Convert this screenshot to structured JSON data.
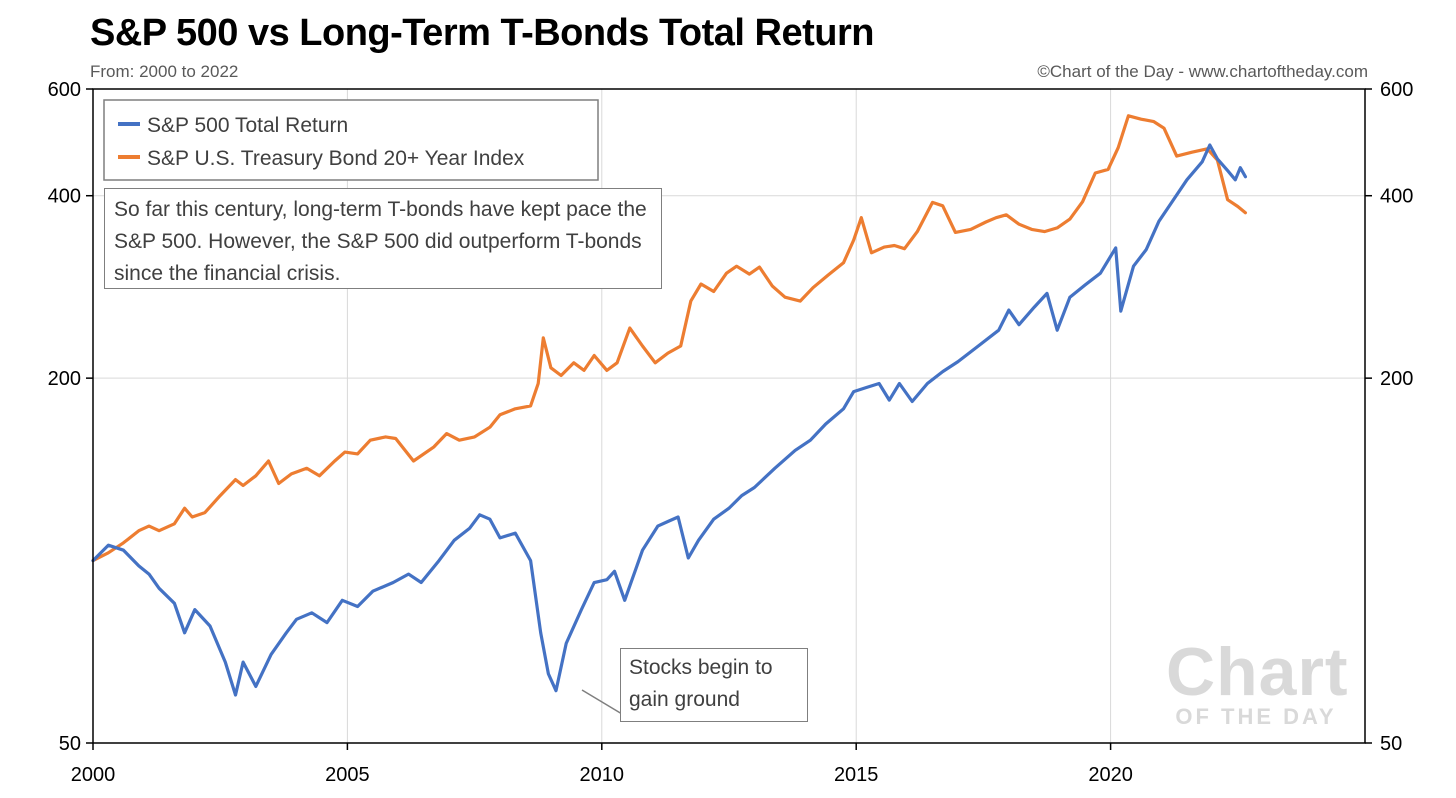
{
  "header": {
    "title": "S&P 500 vs Long-Term T-Bonds Total Return",
    "subtitle": "From: 2000 to 2022",
    "credit": "©Chart of the Day - www.chartoftheday.com"
  },
  "annotation": {
    "note": "So far this century, long-term T-bonds have kept pace the S&P 500. However, the S&P 500 did outperform T-bonds since the financial crisis.",
    "callout": "Stocks begin to gain ground"
  },
  "watermark": {
    "big": "Chart",
    "small": "OF THE DAY"
  },
  "chart_data": {
    "type": "line",
    "yscale": "log",
    "ylim": [
      50,
      600
    ],
    "xlim": [
      2000,
      2025
    ],
    "yticks": [
      50,
      200,
      400,
      600
    ],
    "xticks": [
      2000,
      2005,
      2010,
      2015,
      2020
    ],
    "grid": true,
    "legend_position": "top-left",
    "colors": {
      "sp500": "#4472c4",
      "tbond": "#ed7d31"
    },
    "series": [
      {
        "name": "S&P 500 Total Return",
        "key": "sp500",
        "points": [
          [
            2000.0,
            100
          ],
          [
            2000.3,
            106
          ],
          [
            2000.6,
            104
          ],
          [
            2000.9,
            98
          ],
          [
            2001.1,
            95
          ],
          [
            2001.3,
            90
          ],
          [
            2001.6,
            85
          ],
          [
            2001.8,
            76
          ],
          [
            2002.0,
            83
          ],
          [
            2002.3,
            78
          ],
          [
            2002.6,
            68
          ],
          [
            2002.8,
            60
          ],
          [
            2002.95,
            68
          ],
          [
            2003.2,
            62
          ],
          [
            2003.5,
            70
          ],
          [
            2003.8,
            76
          ],
          [
            2004.0,
            80
          ],
          [
            2004.3,
            82
          ],
          [
            2004.6,
            79
          ],
          [
            2004.9,
            86
          ],
          [
            2005.2,
            84
          ],
          [
            2005.5,
            89
          ],
          [
            2005.9,
            92
          ],
          [
            2006.2,
            95
          ],
          [
            2006.45,
            92
          ],
          [
            2006.8,
            100
          ],
          [
            2007.1,
            108
          ],
          [
            2007.4,
            113
          ],
          [
            2007.6,
            119
          ],
          [
            2007.8,
            117
          ],
          [
            2008.0,
            109
          ],
          [
            2008.3,
            111
          ],
          [
            2008.6,
            100
          ],
          [
            2008.8,
            76
          ],
          [
            2008.95,
            65
          ],
          [
            2009.1,
            61
          ],
          [
            2009.3,
            73
          ],
          [
            2009.6,
            83
          ],
          [
            2009.85,
            92
          ],
          [
            2010.1,
            93
          ],
          [
            2010.25,
            96
          ],
          [
            2010.45,
            86
          ],
          [
            2010.8,
            104
          ],
          [
            2011.1,
            114
          ],
          [
            2011.3,
            116
          ],
          [
            2011.5,
            118
          ],
          [
            2011.7,
            101
          ],
          [
            2011.9,
            108
          ],
          [
            2012.2,
            117
          ],
          [
            2012.5,
            122
          ],
          [
            2012.75,
            128
          ],
          [
            2013.0,
            132
          ],
          [
            2013.4,
            142
          ],
          [
            2013.8,
            152
          ],
          [
            2014.1,
            158
          ],
          [
            2014.4,
            168
          ],
          [
            2014.75,
            178
          ],
          [
            2014.95,
            190
          ],
          [
            2015.2,
            193
          ],
          [
            2015.45,
            196
          ],
          [
            2015.65,
            184
          ],
          [
            2015.85,
            196
          ],
          [
            2016.1,
            183
          ],
          [
            2016.4,
            196
          ],
          [
            2016.7,
            205
          ],
          [
            2017.0,
            213
          ],
          [
            2017.4,
            226
          ],
          [
            2017.8,
            240
          ],
          [
            2018.0,
            259
          ],
          [
            2018.2,
            245
          ],
          [
            2018.5,
            262
          ],
          [
            2018.75,
            276
          ],
          [
            2018.95,
            240
          ],
          [
            2019.2,
            272
          ],
          [
            2019.5,
            285
          ],
          [
            2019.8,
            298
          ],
          [
            2020.1,
            328
          ],
          [
            2020.2,
            258
          ],
          [
            2020.45,
            306
          ],
          [
            2020.7,
            326
          ],
          [
            2020.95,
            363
          ],
          [
            2021.2,
            390
          ],
          [
            2021.5,
            425
          ],
          [
            2021.8,
            455
          ],
          [
            2021.95,
            485
          ],
          [
            2022.1,
            460
          ],
          [
            2022.3,
            440
          ],
          [
            2022.45,
            425
          ],
          [
            2022.55,
            445
          ],
          [
            2022.65,
            430
          ]
        ]
      },
      {
        "name": "S&P U.S. Treasury Bond 20+ Year Index",
        "key": "tbond",
        "points": [
          [
            2000.0,
            100
          ],
          [
            2000.3,
            103
          ],
          [
            2000.6,
            107
          ],
          [
            2000.9,
            112
          ],
          [
            2001.1,
            114
          ],
          [
            2001.3,
            112
          ],
          [
            2001.6,
            115
          ],
          [
            2001.8,
            122
          ],
          [
            2001.95,
            118
          ],
          [
            2002.2,
            120
          ],
          [
            2002.5,
            128
          ],
          [
            2002.8,
            136
          ],
          [
            2002.95,
            133
          ],
          [
            2003.2,
            138
          ],
          [
            2003.45,
            146
          ],
          [
            2003.65,
            134
          ],
          [
            2003.9,
            139
          ],
          [
            2004.2,
            142
          ],
          [
            2004.45,
            138
          ],
          [
            2004.75,
            146
          ],
          [
            2004.95,
            151
          ],
          [
            2005.2,
            150
          ],
          [
            2005.45,
            158
          ],
          [
            2005.75,
            160
          ],
          [
            2005.95,
            159
          ],
          [
            2006.3,
            146
          ],
          [
            2006.7,
            154
          ],
          [
            2006.95,
            162
          ],
          [
            2007.2,
            158
          ],
          [
            2007.5,
            160
          ],
          [
            2007.8,
            166
          ],
          [
            2008.0,
            174
          ],
          [
            2008.3,
            178
          ],
          [
            2008.6,
            180
          ],
          [
            2008.75,
            196
          ],
          [
            2008.85,
            233
          ],
          [
            2009.0,
            208
          ],
          [
            2009.2,
            202
          ],
          [
            2009.45,
            212
          ],
          [
            2009.65,
            206
          ],
          [
            2009.85,
            218
          ],
          [
            2010.1,
            206
          ],
          [
            2010.3,
            212
          ],
          [
            2010.55,
            242
          ],
          [
            2010.8,
            226
          ],
          [
            2011.05,
            212
          ],
          [
            2011.3,
            220
          ],
          [
            2011.55,
            226
          ],
          [
            2011.75,
            268
          ],
          [
            2011.95,
            286
          ],
          [
            2012.2,
            278
          ],
          [
            2012.45,
            298
          ],
          [
            2012.65,
            306
          ],
          [
            2012.9,
            297
          ],
          [
            2013.1,
            305
          ],
          [
            2013.35,
            284
          ],
          [
            2013.6,
            272
          ],
          [
            2013.9,
            268
          ],
          [
            2014.15,
            282
          ],
          [
            2014.45,
            296
          ],
          [
            2014.75,
            310
          ],
          [
            2014.95,
            338
          ],
          [
            2015.1,
            368
          ],
          [
            2015.3,
            322
          ],
          [
            2015.55,
            329
          ],
          [
            2015.75,
            331
          ],
          [
            2015.95,
            327
          ],
          [
            2016.2,
            349
          ],
          [
            2016.5,
            390
          ],
          [
            2016.7,
            385
          ],
          [
            2016.95,
            348
          ],
          [
            2017.25,
            352
          ],
          [
            2017.55,
            362
          ],
          [
            2017.75,
            368
          ],
          [
            2017.95,
            372
          ],
          [
            2018.2,
            359
          ],
          [
            2018.45,
            352
          ],
          [
            2018.7,
            349
          ],
          [
            2018.95,
            354
          ],
          [
            2019.2,
            366
          ],
          [
            2019.45,
            391
          ],
          [
            2019.7,
            436
          ],
          [
            2019.95,
            442
          ],
          [
            2020.15,
            480
          ],
          [
            2020.35,
            542
          ],
          [
            2020.6,
            535
          ],
          [
            2020.85,
            530
          ],
          [
            2021.05,
            517
          ],
          [
            2021.3,
            465
          ],
          [
            2021.6,
            472
          ],
          [
            2021.9,
            478
          ],
          [
            2022.1,
            458
          ],
          [
            2022.3,
            394
          ],
          [
            2022.5,
            384
          ],
          [
            2022.65,
            375
          ]
        ]
      }
    ]
  }
}
